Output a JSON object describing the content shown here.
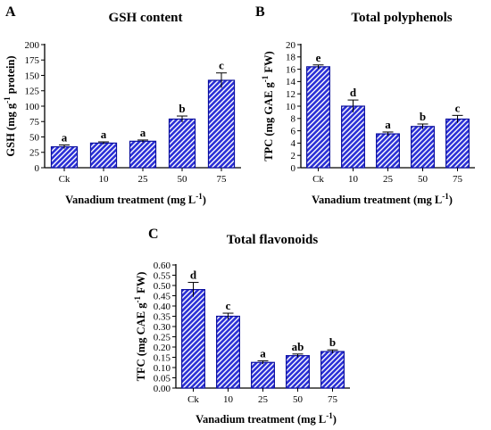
{
  "chart_data": [
    {
      "type": "bar",
      "panel": "A",
      "title": "GSH content",
      "xlabel": "Vanadium treatment (mg L",
      "xlabel_sup": "-1",
      "xlabel_end": ")",
      "ylabel": "GSH (mg g",
      "ylabel_sup": "-1",
      "ylabel_end": " protein)",
      "categories": [
        "Ck",
        "10",
        "25",
        "50",
        "75"
      ],
      "values": [
        34,
        40,
        43,
        79,
        142
      ],
      "errors": [
        3,
        2,
        2,
        5,
        12
      ],
      "letters": [
        "a",
        "a",
        "a",
        "b",
        "c"
      ],
      "ylim": [
        0,
        200
      ],
      "yticks": [
        0,
        25,
        50,
        75,
        100,
        125,
        150,
        175,
        200
      ],
      "ytick_labels": [
        "0",
        "25",
        "50",
        "75",
        "100",
        "125",
        "150",
        "175",
        "200"
      ]
    },
    {
      "type": "bar",
      "panel": "B",
      "title": "Total polyphenols",
      "xlabel": "Vanadium treatment (mg L",
      "xlabel_sup": "-1",
      "xlabel_end": ")",
      "ylabel": "TPC (mg GAE g",
      "ylabel_sup": "-1",
      "ylabel_end": " FW)",
      "categories": [
        "Ck",
        "10",
        "25",
        "50",
        "75"
      ],
      "values": [
        16.4,
        10.0,
        5.5,
        6.7,
        7.9
      ],
      "errors": [
        0.3,
        1.0,
        0.3,
        0.4,
        0.6
      ],
      "letters": [
        "e",
        "d",
        "a",
        "b",
        "c"
      ],
      "ylim": [
        0,
        20
      ],
      "yticks": [
        0,
        2,
        4,
        6,
        8,
        10,
        12,
        14,
        16,
        18,
        20
      ],
      "ytick_labels": [
        "0",
        "2",
        "4",
        "6",
        "8",
        "10",
        "12",
        "14",
        "16",
        "18",
        "20"
      ]
    },
    {
      "type": "bar",
      "panel": "C",
      "title": "Total flavonoids",
      "xlabel": "Vanadium treatment (mg L",
      "xlabel_sup": "-1",
      "xlabel_end": ")",
      "ylabel": "TFC (mg CAE g",
      "ylabel_sup": "-1",
      "ylabel_end": " FW)",
      "categories": [
        "Ck",
        "10",
        "25",
        "50",
        "75"
      ],
      "values": [
        0.48,
        0.35,
        0.125,
        0.158,
        0.178
      ],
      "errors": [
        0.035,
        0.015,
        0.008,
        0.008,
        0.008
      ],
      "letters": [
        "d",
        "c",
        "a",
        "ab",
        "b"
      ],
      "ylim": [
        0,
        0.6
      ],
      "yticks": [
        0,
        0.05,
        0.1,
        0.15,
        0.2,
        0.25,
        0.3,
        0.35,
        0.4,
        0.45,
        0.5,
        0.55,
        0.6
      ],
      "ytick_labels": [
        "0.00",
        "0.05",
        "0.10",
        "0.15",
        "0.20",
        "0.25",
        "0.30",
        "0.35",
        "0.40",
        "0.45",
        "0.50",
        "0.55",
        "0.60"
      ]
    }
  ],
  "colors": {
    "bar_fill": "#2a2fd6",
    "bar_stripe": "#ffffff",
    "bar_edge": "#0b0f9e"
  }
}
